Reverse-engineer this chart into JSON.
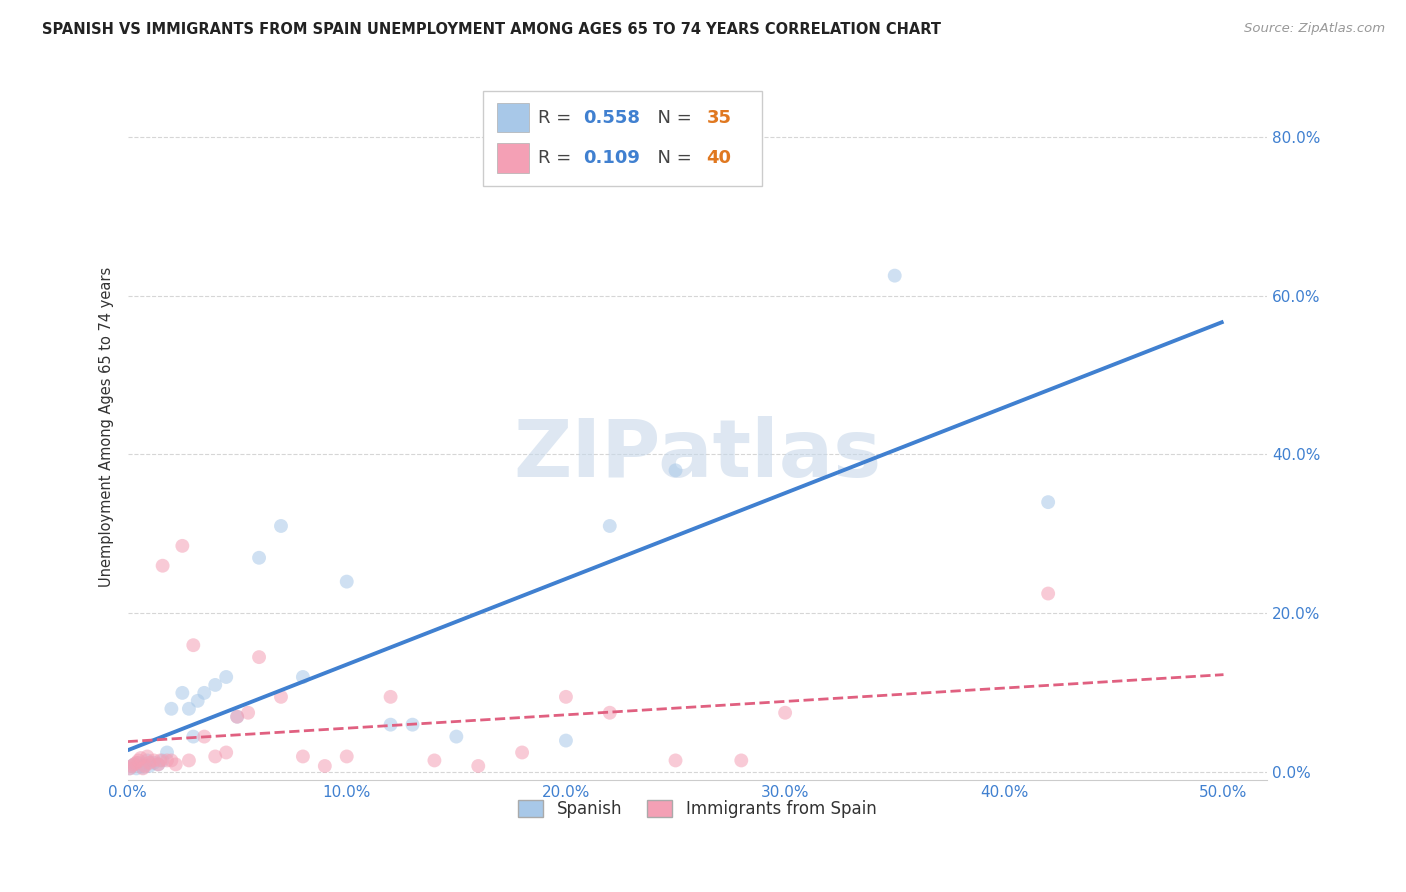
{
  "title": "SPANISH VS IMMIGRANTS FROM SPAIN UNEMPLOYMENT AMONG AGES 65 TO 74 YEARS CORRELATION CHART",
  "source": "Source: ZipAtlas.com",
  "ylabel": "Unemployment Among Ages 65 to 74 years",
  "xlim": [
    0.0,
    0.52
  ],
  "ylim": [
    -0.01,
    0.88
  ],
  "xticks": [
    0.0,
    0.1,
    0.2,
    0.3,
    0.4,
    0.5
  ],
  "yticks": [
    0.0,
    0.2,
    0.4,
    0.6,
    0.8
  ],
  "xtick_labels": [
    "0.0%",
    "10.0%",
    "20.0%",
    "30.0%",
    "40.0%",
    "50.0%"
  ],
  "ytick_labels": [
    "0.0%",
    "20.0%",
    "40.0%",
    "60.0%",
    "80.0%"
  ],
  "spanish_color": "#a8c8e8",
  "immigrants_color": "#f4a0b5",
  "spanish_line_color": "#4080d0",
  "immigrants_line_color": "#e06080",
  "R_blue_color": "#4080d0",
  "N_orange_color": "#e07820",
  "R_spanish": "0.558",
  "N_spanish": "35",
  "R_immigrants": "0.109",
  "N_immigrants": "40",
  "spanish_x": [
    0.001,
    0.002,
    0.003,
    0.004,
    0.005,
    0.006,
    0.007,
    0.008,
    0.009,
    0.01,
    0.012,
    0.014,
    0.016,
    0.018,
    0.02,
    0.025,
    0.028,
    0.03,
    0.032,
    0.035,
    0.04,
    0.045,
    0.05,
    0.06,
    0.07,
    0.08,
    0.1,
    0.12,
    0.13,
    0.15,
    0.2,
    0.22,
    0.25,
    0.35,
    0.42
  ],
  "spanish_y": [
    0.005,
    0.008,
    0.01,
    0.005,
    0.012,
    0.008,
    0.006,
    0.01,
    0.015,
    0.008,
    0.012,
    0.01,
    0.015,
    0.025,
    0.08,
    0.1,
    0.08,
    0.045,
    0.09,
    0.1,
    0.11,
    0.12,
    0.07,
    0.27,
    0.31,
    0.12,
    0.24,
    0.06,
    0.06,
    0.045,
    0.04,
    0.31,
    0.38,
    0.625,
    0.34
  ],
  "immigrants_x": [
    0.001,
    0.002,
    0.003,
    0.004,
    0.005,
    0.006,
    0.007,
    0.008,
    0.009,
    0.01,
    0.012,
    0.014,
    0.015,
    0.016,
    0.018,
    0.02,
    0.022,
    0.025,
    0.028,
    0.03,
    0.035,
    0.04,
    0.045,
    0.05,
    0.055,
    0.06,
    0.07,
    0.08,
    0.09,
    0.1,
    0.12,
    0.14,
    0.16,
    0.18,
    0.2,
    0.22,
    0.25,
    0.28,
    0.3,
    0.42
  ],
  "immigrants_y": [
    0.005,
    0.008,
    0.01,
    0.012,
    0.015,
    0.018,
    0.005,
    0.008,
    0.02,
    0.012,
    0.015,
    0.01,
    0.015,
    0.26,
    0.015,
    0.015,
    0.01,
    0.285,
    0.015,
    0.16,
    0.045,
    0.02,
    0.025,
    0.07,
    0.075,
    0.145,
    0.095,
    0.02,
    0.008,
    0.02,
    0.095,
    0.015,
    0.008,
    0.025,
    0.095,
    0.075,
    0.015,
    0.015,
    0.075,
    0.225
  ],
  "background_color": "#ffffff",
  "grid_color": "#cccccc",
  "watermark_text": "ZIPatlas",
  "watermark_color": "#c8d8ea",
  "marker_size": 100,
  "marker_alpha": 0.55,
  "trendline_x_start": 0.0,
  "trendline_x_end": 0.5
}
